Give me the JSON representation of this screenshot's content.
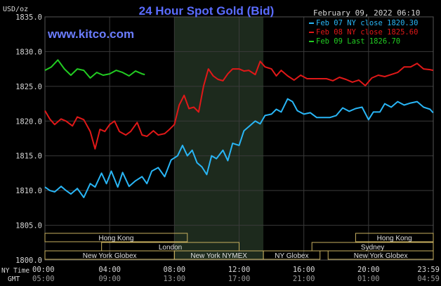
{
  "title": "24 Hour Spot Gold (Bid)",
  "unit_label": "USD/oz",
  "watermark": "www.kitco.com",
  "timestamp": "February 09, 2022 06:10",
  "time_axis": {
    "ny_label": "NY Time",
    "gmt_label": "GMT",
    "ny_ticks": [
      "00:00",
      "04:00",
      "08:00",
      "12:00",
      "16:00",
      "20:00",
      "23:59"
    ],
    "gmt_ticks": [
      "05:00",
      "09:00",
      "13:00",
      "17:00",
      "21:00",
      "01:00",
      "04:59"
    ]
  },
  "sessions": [
    {
      "label": "Hong Kong",
      "start": 0,
      "end": 8.8,
      "row": 0
    },
    {
      "label": "Hong Kong",
      "start": 19.2,
      "end": 24,
      "row": 0
    },
    {
      "label": "London",
      "start": 3.5,
      "end": 12.0,
      "row": 1
    },
    {
      "label": "Sydney",
      "start": 16.5,
      "end": 24,
      "row": 1
    },
    {
      "label": "New York Globex",
      "start": 0,
      "end": 8.0,
      "row": 2
    },
    {
      "label": "New York NYMEX",
      "start": 8.0,
      "end": 13.5,
      "row": 2
    },
    {
      "label": "NY Globex",
      "start": 13.5,
      "end": 17.0,
      "row": 2
    },
    {
      "label": "New York Globex",
      "start": 17.5,
      "end": 24,
      "row": 2
    }
  ],
  "colors": {
    "background": "#000000",
    "grid": "#3a3a3a",
    "title": "#5a6cff",
    "watermark": "#6b7dff",
    "text": "#d8d8d8",
    "shade": "#1d2a1d",
    "session_border": "#c8b060",
    "series_feb07": "#29b6f6",
    "series_feb08": "#e01818",
    "series_feb09": "#22cc22"
  },
  "chart_data": {
    "type": "line",
    "title": "24 Hour Spot Gold (Bid)",
    "ylabel": "USD/oz",
    "ylim": [
      1800,
      1835
    ],
    "yticks": [
      1800.0,
      1805.0,
      1810.0,
      1815.0,
      1820.0,
      1825.0,
      1830.0,
      1835.0
    ],
    "xlim": [
      0,
      24
    ],
    "shaded_region": [
      8.0,
      13.5
    ],
    "grid": true,
    "legend_position": "top-right",
    "series": [
      {
        "name": "Feb 07 NY close 1820.30",
        "color_key": "series_feb07",
        "x": [
          0,
          0.3,
          0.6,
          1.0,
          1.3,
          1.6,
          2.0,
          2.4,
          2.8,
          3.1,
          3.5,
          3.8,
          4.1,
          4.5,
          4.8,
          5.2,
          5.6,
          6.0,
          6.3,
          6.6,
          7.0,
          7.4,
          7.8,
          8.2,
          8.5,
          8.8,
          9.1,
          9.4,
          9.7,
          10.0,
          10.3,
          10.6,
          11.0,
          11.3,
          11.6,
          12.0,
          12.3,
          12.6,
          13.0,
          13.3,
          13.6,
          14.0,
          14.3,
          14.6,
          15.0,
          15.3,
          15.6,
          16.0,
          16.4,
          16.8,
          17.2,
          17.6,
          18.0,
          18.4,
          18.8,
          19.2,
          19.6,
          20.0,
          20.3,
          20.7,
          21.0,
          21.4,
          21.8,
          22.2,
          22.6,
          23.0,
          23.4,
          23.8,
          23.99
        ],
        "y": [
          1810.5,
          1810.0,
          1809.8,
          1810.6,
          1810.0,
          1809.5,
          1810.3,
          1809.0,
          1811.0,
          1810.5,
          1812.5,
          1811.0,
          1812.8,
          1810.5,
          1812.6,
          1810.6,
          1811.4,
          1812.0,
          1811.0,
          1812.8,
          1813.3,
          1812.0,
          1814.4,
          1815.0,
          1816.5,
          1815.0,
          1815.8,
          1814.0,
          1813.4,
          1812.3,
          1815.0,
          1814.6,
          1815.8,
          1814.3,
          1816.8,
          1816.5,
          1818.6,
          1819.2,
          1820.0,
          1819.6,
          1820.8,
          1821.0,
          1821.7,
          1821.3,
          1823.2,
          1822.8,
          1821.5,
          1821.0,
          1821.2,
          1820.5,
          1820.5,
          1820.5,
          1820.8,
          1821.9,
          1821.4,
          1821.8,
          1822.0,
          1820.2,
          1821.3,
          1821.3,
          1822.5,
          1822.0,
          1822.8,
          1822.3,
          1822.6,
          1822.8,
          1822.0,
          1821.7,
          1821.2
        ]
      },
      {
        "name": "Feb 08 NY close 1825.60",
        "color_key": "series_feb08",
        "x": [
          0,
          0.3,
          0.6,
          1.0,
          1.3,
          1.7,
          2.0,
          2.4,
          2.8,
          3.1,
          3.4,
          3.7,
          4.0,
          4.3,
          4.6,
          5.0,
          5.3,
          5.7,
          6.0,
          6.3,
          6.7,
          7.0,
          7.4,
          7.7,
          8.0,
          8.3,
          8.6,
          8.9,
          9.2,
          9.5,
          9.8,
          10.1,
          10.4,
          10.7,
          11.0,
          11.3,
          11.6,
          12.0,
          12.3,
          12.6,
          13.0,
          13.3,
          13.6,
          14.0,
          14.3,
          14.6,
          15.0,
          15.4,
          15.8,
          16.2,
          16.6,
          17.0,
          17.4,
          17.8,
          18.2,
          18.6,
          19.0,
          19.4,
          19.8,
          20.2,
          20.6,
          21.0,
          21.4,
          21.8,
          22.2,
          22.6,
          23.0,
          23.4,
          23.8,
          23.99
        ],
        "y": [
          1821.5,
          1820.3,
          1819.5,
          1820.3,
          1820.0,
          1819.3,
          1820.6,
          1820.2,
          1818.5,
          1816.0,
          1818.8,
          1818.5,
          1819.5,
          1820.0,
          1818.5,
          1818.0,
          1818.5,
          1819.8,
          1818.0,
          1817.8,
          1818.6,
          1818.0,
          1818.2,
          1818.8,
          1819.5,
          1822.3,
          1823.7,
          1821.8,
          1822.0,
          1821.3,
          1825.0,
          1827.5,
          1826.5,
          1826.0,
          1825.8,
          1826.8,
          1827.5,
          1827.5,
          1827.2,
          1827.3,
          1826.7,
          1828.6,
          1827.8,
          1827.5,
          1826.5,
          1827.3,
          1826.5,
          1825.9,
          1826.6,
          1826.1,
          1826.1,
          1826.1,
          1826.1,
          1825.8,
          1826.3,
          1826.0,
          1825.6,
          1825.9,
          1825.1,
          1826.2,
          1826.6,
          1826.4,
          1826.7,
          1827.0,
          1827.8,
          1827.8,
          1828.3,
          1827.5,
          1827.4,
          1827.3
        ]
      },
      {
        "name": "Feb 09 Last 1826.70",
        "color_key": "series_feb09",
        "x": [
          0,
          0.4,
          0.8,
          1.2,
          1.6,
          2.0,
          2.4,
          2.8,
          3.2,
          3.6,
          4.0,
          4.4,
          4.8,
          5.2,
          5.6,
          6.0,
          6.17
        ],
        "y": [
          1827.3,
          1827.8,
          1828.8,
          1827.5,
          1826.6,
          1827.5,
          1827.3,
          1826.2,
          1827.0,
          1826.6,
          1826.8,
          1827.3,
          1827.0,
          1826.5,
          1827.2,
          1826.8,
          1826.7
        ]
      }
    ]
  }
}
